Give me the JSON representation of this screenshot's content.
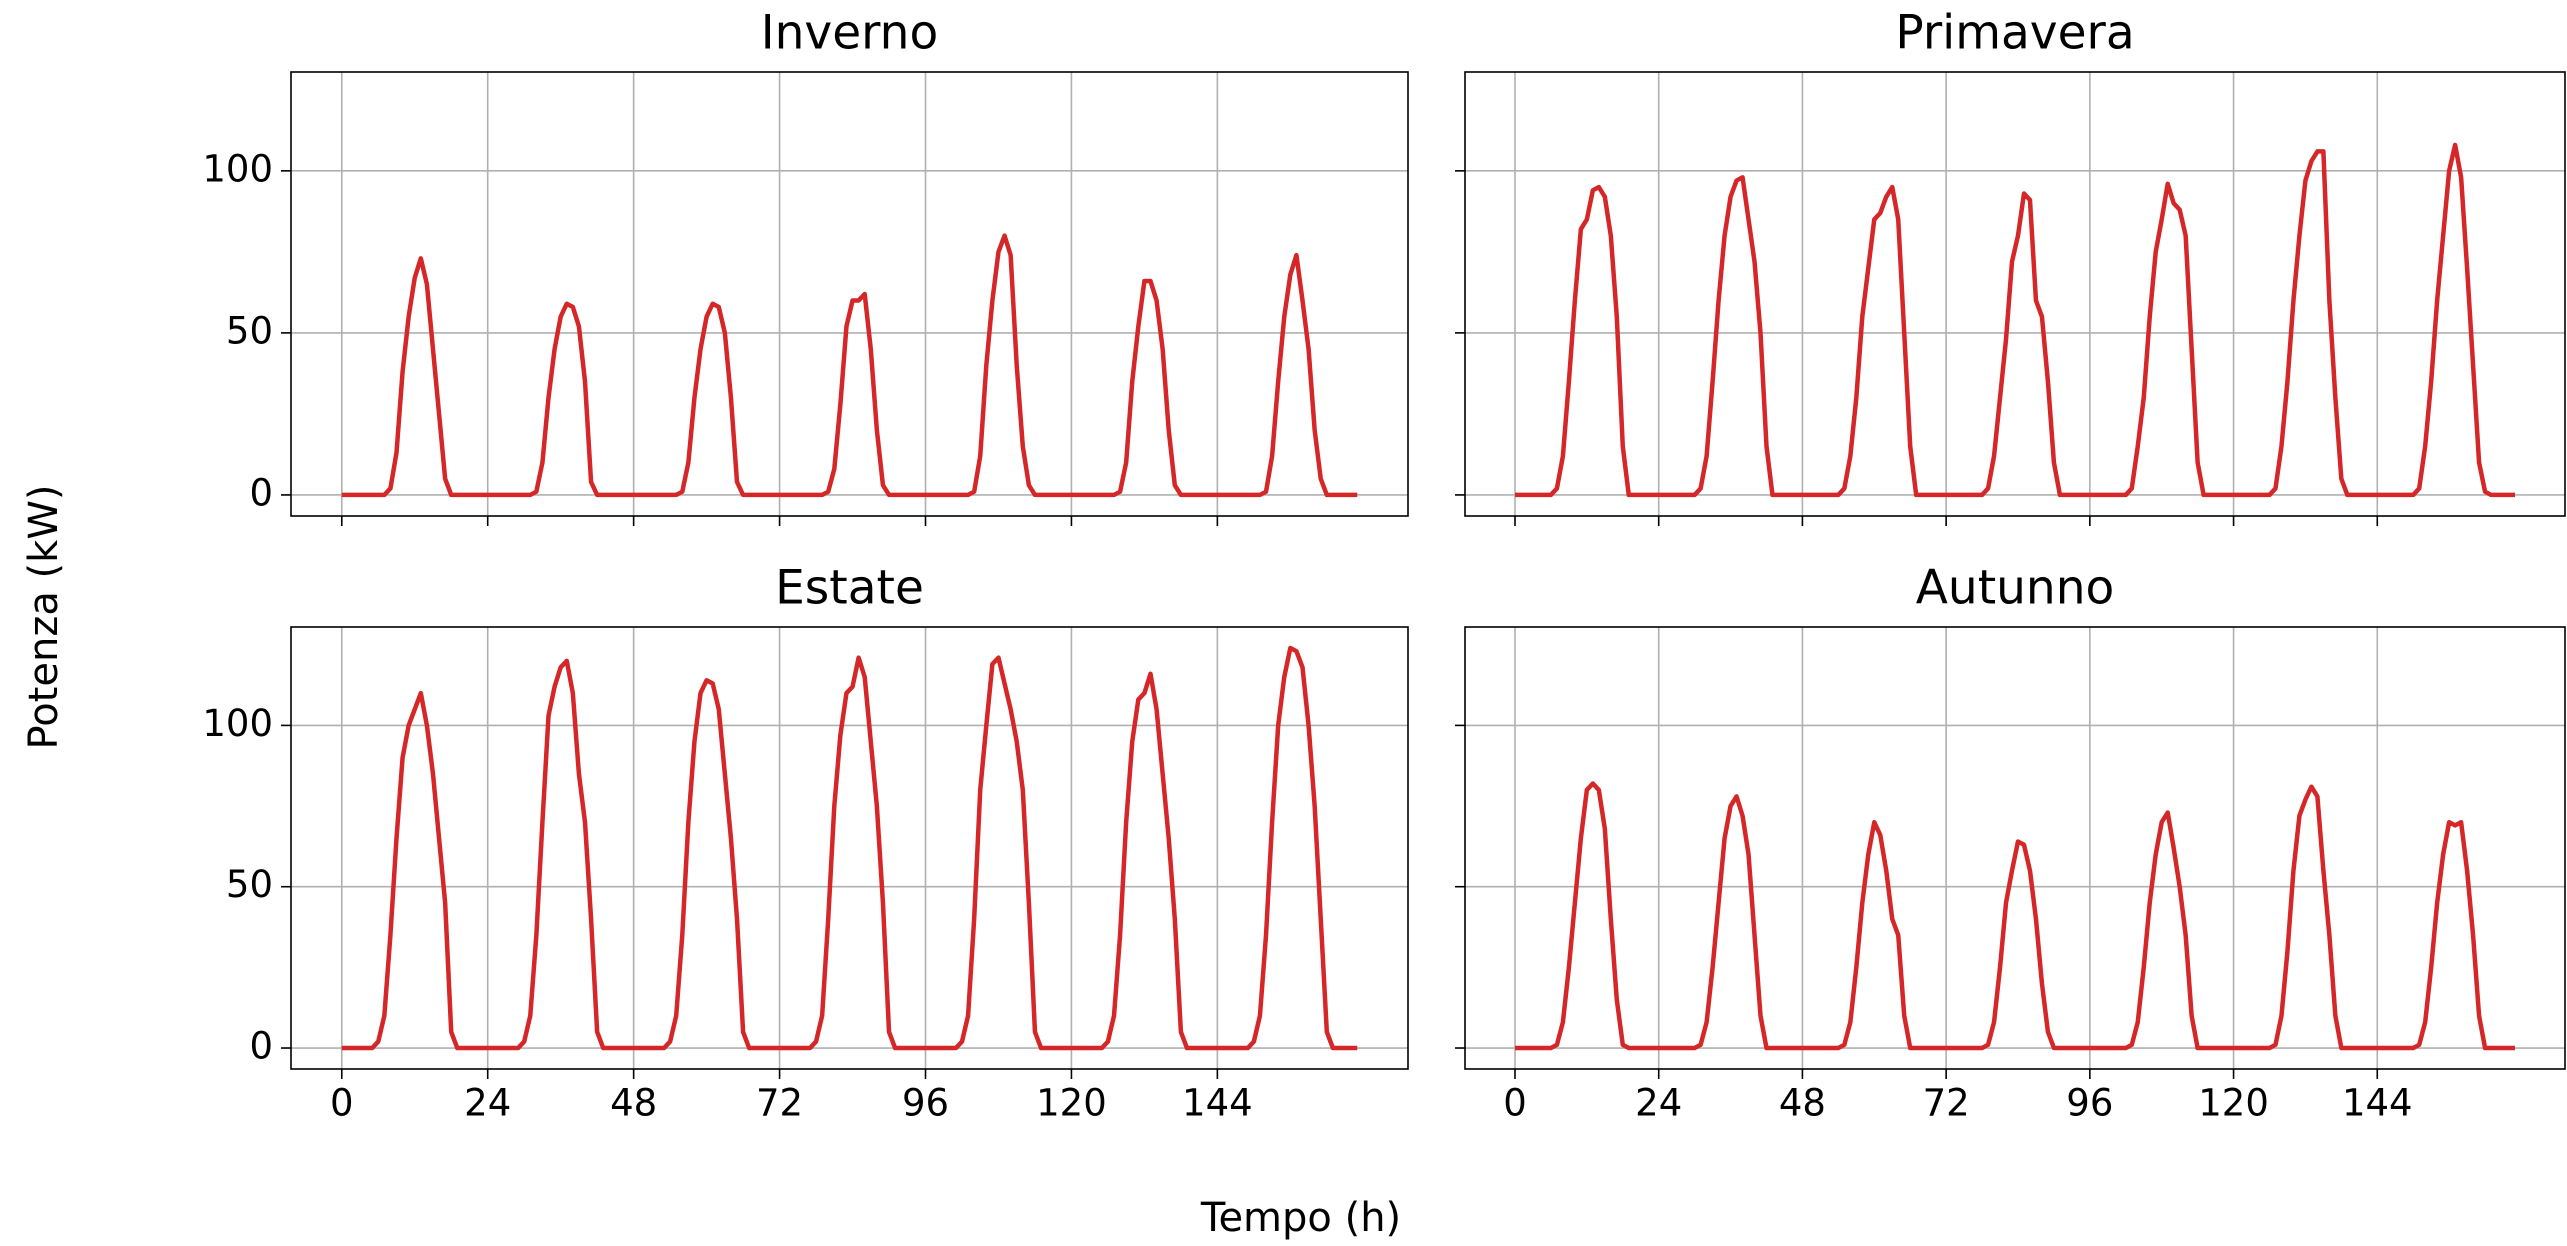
{
  "figure": {
    "xlabel": "Tempo (h)",
    "ylabel": "Potenza (kW)"
  },
  "chart_data": [
    {
      "type": "line",
      "title": "Inverno",
      "x": [
        0,
        5,
        6,
        7,
        8,
        9,
        10,
        11,
        12,
        13,
        14,
        15,
        16,
        17,
        18,
        19,
        29,
        30,
        31,
        32,
        33,
        34,
        35,
        36,
        37,
        38,
        39,
        40,
        41,
        42,
        43,
        53,
        54,
        55,
        56,
        57,
        58,
        59,
        60,
        61,
        62,
        63,
        64,
        65,
        66,
        67,
        77,
        78,
        79,
        80,
        81,
        82,
        83,
        84,
        85,
        86,
        87,
        88,
        89,
        90,
        91,
        101,
        102,
        103,
        104,
        105,
        106,
        107,
        108,
        109,
        110,
        111,
        112,
        113,
        114,
        115,
        125,
        126,
        127,
        128,
        129,
        130,
        131,
        132,
        133,
        134,
        135,
        136,
        137,
        138,
        139,
        149,
        150,
        151,
        152,
        153,
        154,
        155,
        156,
        157,
        158,
        159,
        160,
        161,
        162,
        163,
        167
      ],
      "series": [
        {
          "color": "#d62728",
          "values": [
            0,
            0,
            0,
            0,
            2,
            13,
            38,
            55,
            67,
            73,
            65,
            45,
            25,
            5,
            0,
            0,
            0,
            0,
            0,
            1,
            10,
            30,
            45,
            55,
            59,
            58,
            52,
            35,
            4,
            0,
            0,
            0,
            0,
            0,
            1,
            10,
            30,
            45,
            55,
            59,
            58,
            50,
            30,
            4,
            0,
            0,
            0,
            0,
            0,
            1,
            8,
            28,
            52,
            60,
            60,
            62,
            45,
            20,
            3,
            0,
            0,
            0,
            0,
            0,
            1,
            12,
            40,
            60,
            75,
            80,
            74,
            40,
            15,
            3,
            0,
            0,
            0,
            0,
            0,
            1,
            10,
            35,
            52,
            66,
            66,
            60,
            45,
            20,
            3,
            0,
            0,
            0,
            0,
            0,
            1,
            12,
            35,
            55,
            68,
            74,
            60,
            45,
            20,
            5,
            0,
            0,
            0
          ]
        }
      ],
      "xlim": [
        -8.35,
        175.35
      ],
      "ylim": [
        -6.5,
        130.5
      ],
      "xticks": [
        0,
        24,
        48,
        72,
        96,
        120,
        144
      ],
      "yticks": [
        0,
        50,
        100
      ],
      "grid": true
    },
    {
      "type": "line",
      "title": "Primavera",
      "x": [
        0,
        5,
        6,
        7,
        8,
        9,
        10,
        11,
        12,
        13,
        14,
        15,
        16,
        17,
        18,
        19,
        29,
        30,
        31,
        32,
        33,
        34,
        35,
        36,
        37,
        38,
        39,
        40,
        41,
        42,
        43,
        53,
        54,
        55,
        56,
        57,
        58,
        59,
        60,
        61,
        62,
        63,
        64,
        65,
        66,
        67,
        77,
        78,
        79,
        80,
        81,
        82,
        83,
        84,
        85,
        86,
        87,
        88,
        89,
        90,
        91,
        101,
        102,
        103,
        104,
        105,
        106,
        107,
        108,
        109,
        110,
        111,
        112,
        113,
        114,
        115,
        125,
        126,
        127,
        128,
        129,
        130,
        131,
        132,
        133,
        134,
        135,
        136,
        137,
        138,
        139,
        149,
        150,
        151,
        152,
        153,
        154,
        155,
        156,
        157,
        158,
        159,
        160,
        161,
        162,
        163,
        167
      ],
      "series": [
        {
          "color": "#d62728",
          "values": [
            0,
            0,
            0,
            2,
            12,
            35,
            60,
            82,
            85,
            94,
            95,
            92,
            80,
            55,
            15,
            0,
            0,
            0,
            2,
            12,
            35,
            60,
            80,
            92,
            97,
            98,
            85,
            72,
            50,
            15,
            0,
            0,
            0,
            2,
            12,
            30,
            55,
            70,
            85,
            87,
            92,
            95,
            85,
            50,
            15,
            0,
            0,
            0,
            2,
            12,
            30,
            48,
            72,
            80,
            93,
            91,
            60,
            55,
            35,
            10,
            0,
            0,
            0,
            2,
            15,
            30,
            55,
            75,
            85,
            96,
            90,
            88,
            80,
            45,
            10,
            0,
            0,
            0,
            2,
            15,
            35,
            60,
            80,
            97,
            103,
            106,
            106,
            60,
            30,
            5,
            0,
            0,
            0,
            2,
            15,
            35,
            60,
            80,
            100,
            108,
            98,
            70,
            40,
            10,
            1,
            0,
            0
          ]
        }
      ],
      "xlim": [
        -8.35,
        175.35
      ],
      "ylim": [
        -6.5,
        130.5
      ],
      "xticks": [
        0,
        24,
        48,
        72,
        96,
        120,
        144
      ],
      "yticks": [
        0,
        50,
        100
      ],
      "grid": true
    },
    {
      "type": "line",
      "title": "Estate",
      "x": [
        0,
        5,
        6,
        7,
        8,
        9,
        10,
        11,
        12,
        13,
        14,
        15,
        16,
        17,
        18,
        19,
        29,
        30,
        31,
        32,
        33,
        34,
        35,
        36,
        37,
        38,
        39,
        40,
        41,
        42,
        43,
        53,
        54,
        55,
        56,
        57,
        58,
        59,
        60,
        61,
        62,
        63,
        64,
        65,
        66,
        67,
        77,
        78,
        79,
        80,
        81,
        82,
        83,
        84,
        85,
        86,
        87,
        88,
        89,
        90,
        91,
        101,
        102,
        103,
        104,
        105,
        106,
        107,
        108,
        109,
        110,
        111,
        112,
        113,
        114,
        115,
        125,
        126,
        127,
        128,
        129,
        130,
        131,
        132,
        133,
        134,
        135,
        136,
        137,
        138,
        139,
        149,
        150,
        151,
        152,
        153,
        154,
        155,
        156,
        157,
        158,
        159,
        160,
        161,
        162,
        163,
        167
      ],
      "series": [
        {
          "color": "#d62728",
          "values": [
            0,
            0,
            2,
            10,
            35,
            65,
            90,
            100,
            105,
            110,
            100,
            85,
            65,
            45,
            5,
            0,
            0,
            2,
            10,
            35,
            70,
            103,
            112,
            118,
            120,
            110,
            85,
            70,
            40,
            5,
            0,
            0,
            2,
            10,
            35,
            70,
            95,
            110,
            114,
            113,
            105,
            85,
            65,
            40,
            5,
            0,
            0,
            2,
            10,
            40,
            75,
            97,
            110,
            112,
            121,
            115,
            95,
            75,
            45,
            5,
            0,
            0,
            2,
            10,
            40,
            80,
            100,
            119,
            121,
            113,
            105,
            95,
            80,
            45,
            5,
            0,
            0,
            2,
            10,
            35,
            70,
            95,
            108,
            110,
            116,
            105,
            85,
            65,
            40,
            5,
            0,
            0,
            2,
            10,
            35,
            70,
            100,
            115,
            124,
            123,
            118,
            100,
            75,
            40,
            5,
            0,
            0
          ]
        }
      ],
      "xlim": [
        -8.35,
        175.35
      ],
      "ylim": [
        -6.5,
        130.5
      ],
      "xticks": [
        0,
        24,
        48,
        72,
        96,
        120,
        144
      ],
      "yticks": [
        0,
        50,
        100
      ],
      "grid": true
    },
    {
      "type": "line",
      "title": "Autunno",
      "x": [
        0,
        5,
        6,
        7,
        8,
        9,
        10,
        11,
        12,
        13,
        14,
        15,
        16,
        17,
        18,
        19,
        29,
        30,
        31,
        32,
        33,
        34,
        35,
        36,
        37,
        38,
        39,
        40,
        41,
        42,
        43,
        53,
        54,
        55,
        56,
        57,
        58,
        59,
        60,
        61,
        62,
        63,
        64,
        65,
        66,
        67,
        77,
        78,
        79,
        80,
        81,
        82,
        83,
        84,
        85,
        86,
        87,
        88,
        89,
        90,
        91,
        101,
        102,
        103,
        104,
        105,
        106,
        107,
        108,
        109,
        110,
        111,
        112,
        113,
        114,
        115,
        125,
        126,
        127,
        128,
        129,
        130,
        131,
        132,
        133,
        134,
        135,
        136,
        137,
        138,
        139,
        149,
        150,
        151,
        152,
        153,
        154,
        155,
        156,
        157,
        158,
        159,
        160,
        161,
        162,
        163,
        167
      ],
      "series": [
        {
          "color": "#d62728",
          "values": [
            0,
            0,
            0,
            1,
            8,
            25,
            45,
            65,
            80,
            82,
            80,
            68,
            40,
            15,
            1,
            0,
            0,
            0,
            1,
            8,
            25,
            45,
            65,
            75,
            78,
            72,
            60,
            35,
            10,
            0,
            0,
            0,
            0,
            1,
            8,
            25,
            45,
            60,
            70,
            66,
            55,
            40,
            35,
            10,
            0,
            0,
            0,
            0,
            1,
            8,
            25,
            45,
            55,
            64,
            63,
            55,
            40,
            20,
            5,
            0,
            0,
            0,
            0,
            1,
            8,
            25,
            45,
            60,
            70,
            73,
            62,
            50,
            35,
            10,
            0,
            0,
            0,
            0,
            1,
            10,
            30,
            55,
            72,
            77,
            81,
            78,
            55,
            35,
            10,
            0,
            0,
            0,
            0,
            1,
            8,
            25,
            45,
            60,
            70,
            69,
            70,
            55,
            35,
            10,
            0,
            0,
            0
          ]
        }
      ],
      "xlim": [
        -8.35,
        175.35
      ],
      "ylim": [
        -6.5,
        130.5
      ],
      "xticks": [
        0,
        24,
        48,
        72,
        96,
        120,
        144
      ],
      "yticks": [
        0,
        50,
        100
      ],
      "grid": true
    }
  ]
}
